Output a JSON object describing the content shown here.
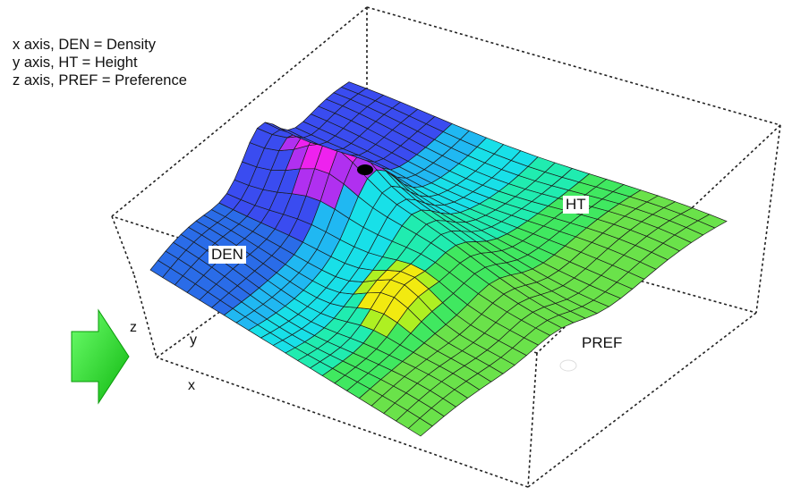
{
  "legend": {
    "x_line": "x axis, DEN = Density",
    "y_line": "y axis, HT = Height",
    "z_line": "z axis, PREF = Preference"
  },
  "axis_letters": {
    "x": "x",
    "y": "y",
    "z": "z"
  },
  "surface_labels": {
    "den": "DEN",
    "ht": "HT",
    "pref": "PREF"
  },
  "markers": {
    "black_marker": "black dot",
    "white_marker": "white dot"
  },
  "arrow_icon": "right-arrow-icon",
  "colors": {
    "arrow": "#22dd22",
    "frame": "#222222"
  },
  "chart_data": {
    "type": "surface",
    "title": "",
    "xlabel": "x",
    "ylabel": "y",
    "zlabel": "z",
    "grid": "mesh",
    "colormap": [
      "#1e3cff",
      "#ff00ff",
      "#00e5ff",
      "#22dd55",
      "#ffee00"
    ],
    "annotations": [
      "DEN",
      "HT",
      "PREF"
    ]
  }
}
